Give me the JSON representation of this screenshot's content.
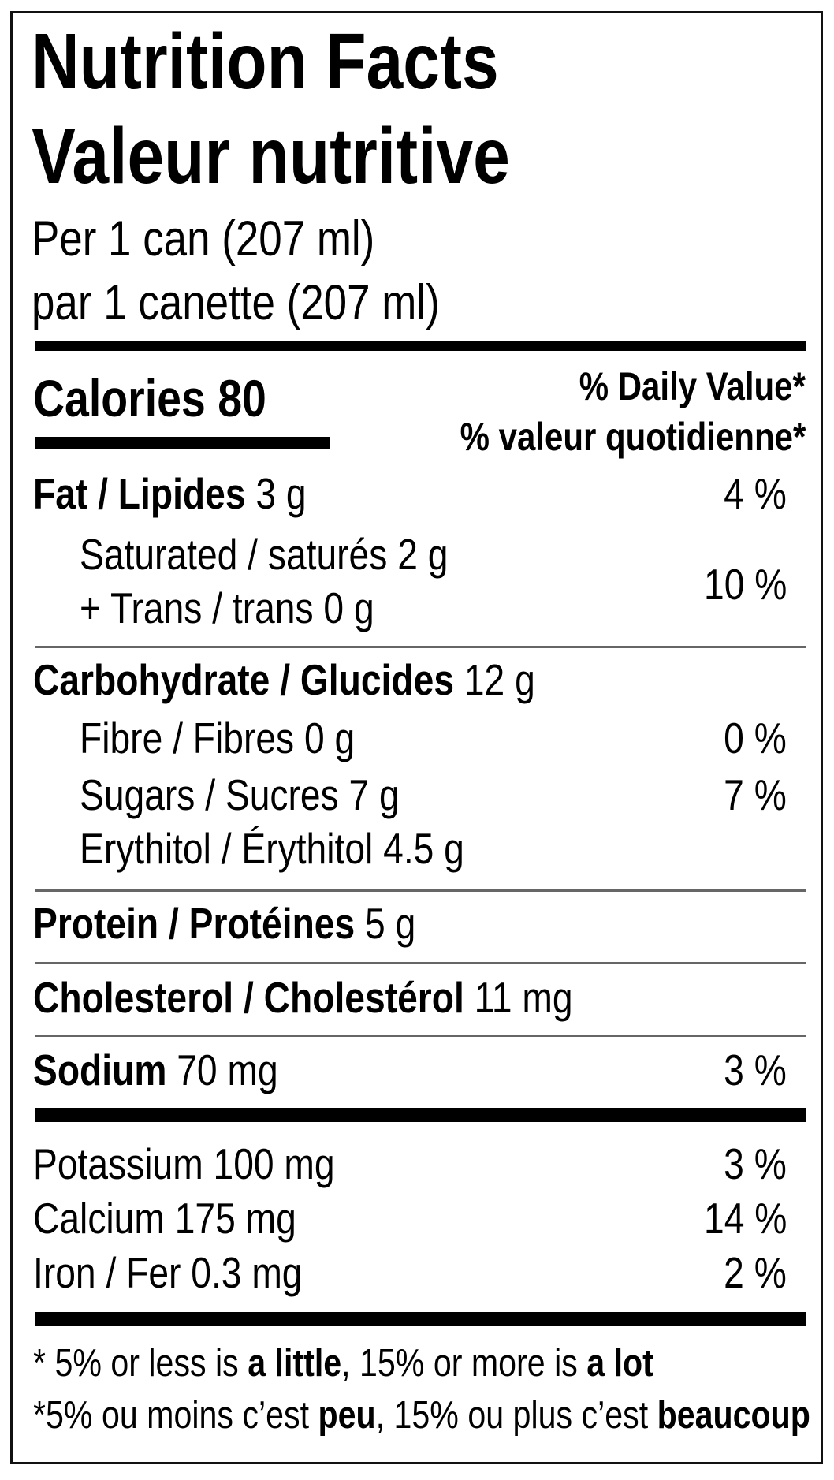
{
  "title_en": "Nutrition Facts",
  "title_fr": "Valeur nutritive",
  "serving_en": "Per 1 can (207 ml)",
  "serving_fr": "par 1 canette (207 ml)",
  "calories": {
    "label": "Calories",
    "value": "80"
  },
  "daily_value_en": "% Daily Value*",
  "daily_value_fr": "% valeur quotidienne*",
  "nutrients": {
    "fat": {
      "label": "Fat / Lipides",
      "amount": "3 g",
      "dv": "4 %"
    },
    "saturated": {
      "label": "Saturated / saturés 2 g"
    },
    "trans": {
      "label": "+ Trans / trans 0 g"
    },
    "sat_trans_dv": "10 %",
    "carbohydrate": {
      "label": "Carbohydrate / Glucides",
      "amount": "12 g"
    },
    "fibre": {
      "label": "Fibre / Fibres 0 g",
      "dv": "0 %"
    },
    "sugars": {
      "label": "Sugars / Sucres 7 g",
      "dv": "7 %"
    },
    "erythritol": {
      "label": "Erythitol / Érythitol 4.5 g"
    },
    "protein": {
      "label": "Protein / Protéines",
      "amount": "5 g"
    },
    "cholesterol": {
      "label": "Cholesterol / Cholestérol",
      "amount": "11 mg"
    },
    "sodium": {
      "label": "Sodium",
      "amount": "70 mg",
      "dv": "3 %"
    },
    "potassium": {
      "label": "Potassium 100 mg",
      "dv": "3 %"
    },
    "calcium": {
      "label": "Calcium 175 mg",
      "dv": "14 %"
    },
    "iron": {
      "label": "Iron / Fer 0.3 mg",
      "dv": "2 %"
    }
  },
  "footnote_en": {
    "p1": "* 5% or less is ",
    "b1": "a little",
    "p2": ", 15% or more is ",
    "b2": "a lot"
  },
  "footnote_fr": {
    "p1": "*5% ou moins c’est ",
    "b1": "peu",
    "p2": ", 15% ou plus c’est ",
    "b2": "beaucoup"
  }
}
